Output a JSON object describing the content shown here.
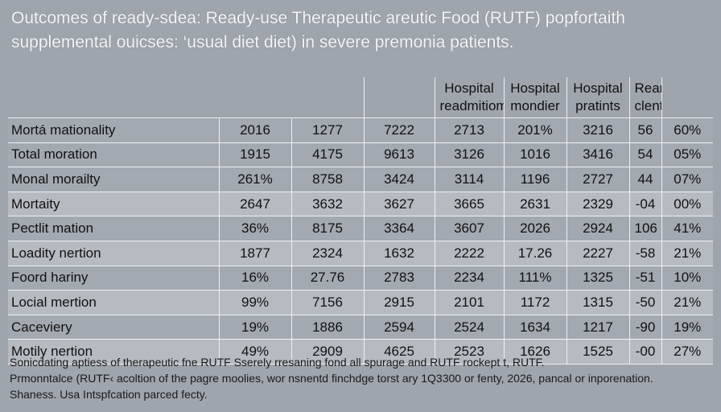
{
  "title": {
    "line1": "Outcomes of ready-sdea: Ready-use Therapeutic areutic Food (RUTF) popfortaith",
    "line2": "supplemental ouicses: ‘usual diet diet) in severe premonia patients."
  },
  "headers": [
    "",
    "",
    "",
    "",
    "Hospital readmitiom",
    "Hospital mondier",
    "Hospital pratints",
    "Reamitsion clent",
    ""
  ],
  "rows": [
    [
      "Mortá mationality",
      "2016",
      "1277",
      "7222",
      "2713",
      "201%",
      "3216",
      "56",
      "60%"
    ],
    [
      "Total moration",
      "1915",
      "4175",
      "9613",
      "3126",
      "1016",
      "3416",
      "54",
      "05%"
    ],
    [
      "Monal morailty",
      "261%",
      "8758",
      "3424",
      "3114",
      "1196",
      "2727",
      "44",
      "07%"
    ],
    [
      "Mortaity",
      "2647",
      "3632",
      "3627",
      "3665",
      "2631",
      "2329",
      "-04",
      "00%"
    ],
    [
      "Pectlit mation",
      "36%",
      "8175",
      "3364",
      "3607",
      "2026",
      "2924",
      "106",
      "41%"
    ],
    [
      "Loadity nertion",
      "1877",
      "2324",
      "1632",
      "2222",
      "17.26",
      "2227",
      "-58",
      "21%"
    ],
    [
      "Foord hariny",
      "16%",
      "27.76",
      "2783",
      "2234",
      "111%",
      "1325",
      "-51",
      "10%"
    ],
    [
      "Locial mertion",
      "99%",
      "7156",
      "2915",
      "2101",
      "1172",
      "1315",
      "-50",
      "21%"
    ],
    [
      "Caceviery",
      "19%",
      "1886",
      "2594",
      "2524",
      "1634",
      "1217",
      "-90",
      "19%"
    ],
    [
      "Motily nertion",
      "49%",
      "2909",
      "4625",
      "2523",
      "1626",
      "1525",
      "-00",
      "27%"
    ]
  ],
  "footer": {
    "line1": "Sonicdating aptiess of therapeutic fne RUTF Sserely rresaning fond all spurage and RUTF rockept t, RUTF.",
    "line2": "Prmonntalce (RUTF‹ acoltion of the pagre moolies, wor nsnentd finchdge torst ary 1Q3300 or fenty, 2026, pancal or inporenation.",
    "line3": "Shaness. Usa Intspfcation parced fecty."
  }
}
